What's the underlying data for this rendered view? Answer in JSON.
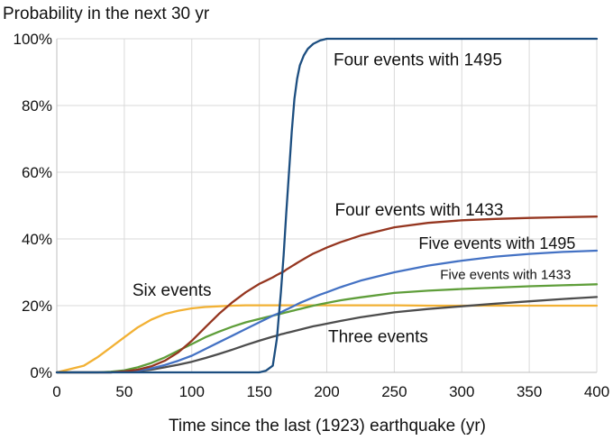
{
  "chart_data": {
    "type": "line",
    "title": "",
    "ylabel": "Probability in the next 30 yr",
    "xlabel": "Time since the last (1923) earthquake (yr)",
    "xlim": [
      0,
      400
    ],
    "ylim": [
      0,
      100
    ],
    "xticks": [
      0,
      50,
      100,
      150,
      200,
      250,
      300,
      350,
      400
    ],
    "xtick_labels": [
      "0",
      "50",
      "100",
      "150",
      "200",
      "250",
      "300",
      "350",
      "400"
    ],
    "yticks": [
      0,
      20,
      40,
      60,
      80,
      100
    ],
    "ytick_labels": [
      "0%",
      "20%",
      "40%",
      "60%",
      "80%",
      "100%"
    ],
    "grid": true,
    "x": [
      0,
      20,
      30,
      40,
      50,
      60,
      70,
      80,
      90,
      100,
      110,
      120,
      130,
      140,
      150,
      155,
      160,
      163,
      166,
      168,
      170,
      172,
      174,
      176,
      178,
      180,
      183,
      186,
      190,
      195,
      200,
      210,
      225,
      250,
      275,
      300,
      325,
      350,
      375,
      400
    ],
    "series": [
      {
        "name": "Four events with 1495",
        "color": "#1c4e80",
        "values": [
          0,
          0,
          0,
          0,
          0,
          0,
          0,
          0,
          0,
          0,
          0,
          0,
          0,
          0,
          0,
          0.5,
          2,
          10,
          24,
          35,
          48,
          60,
          72,
          82,
          88,
          92,
          95,
          97,
          98.5,
          99.5,
          100,
          100,
          100,
          100,
          100,
          100,
          100,
          100,
          100,
          100
        ]
      },
      {
        "name": "Four events with 1433",
        "color": "#953620",
        "values": [
          0,
          0,
          0,
          0,
          0.3,
          0.8,
          1.8,
          3.5,
          6,
          9.5,
          13.5,
          17.5,
          21,
          24,
          26.5,
          27.5,
          28.5,
          29.2,
          29.8,
          30.2,
          30.8,
          31.3,
          31.8,
          32.3,
          32.8,
          33.3,
          34,
          34.7,
          35.6,
          36.5,
          37.4,
          39,
          41,
          43.5,
          44.8,
          45.6,
          46,
          46.3,
          46.5,
          46.7
        ]
      },
      {
        "name": "Five events with 1495",
        "color": "#4472c4",
        "values": [
          0,
          0,
          0,
          0,
          0.3,
          0.6,
          1.2,
          2.2,
          3.5,
          5,
          7,
          9,
          11,
          13,
          15,
          16,
          17,
          17.5,
          18,
          18.4,
          18.8,
          19.2,
          19.6,
          20,
          20.4,
          20.8,
          21.3,
          21.8,
          22.5,
          23.3,
          24,
          25.5,
          27.5,
          30,
          32,
          33.5,
          34.7,
          35.5,
          36.1,
          36.5
        ]
      },
      {
        "name": "Five events with 1433",
        "color": "#5f9e3a",
        "values": [
          0,
          0,
          0,
          0.2,
          0.6,
          1.5,
          2.8,
          4.5,
          6.5,
          8.5,
          10.5,
          12.2,
          13.7,
          15,
          16,
          16.5,
          17,
          17.3,
          17.6,
          17.8,
          18,
          18.2,
          18.4,
          18.6,
          18.8,
          19,
          19.3,
          19.6,
          20,
          20.4,
          20.8,
          21.6,
          22.5,
          23.8,
          24.5,
          25,
          25.4,
          25.8,
          26.1,
          26.4
        ]
      },
      {
        "name": "Six events",
        "color": "#f2b134",
        "values": [
          0,
          2,
          4.5,
          7.5,
          10.5,
          13.5,
          15.8,
          17.5,
          18.5,
          19.2,
          19.6,
          19.8,
          20,
          20.1,
          20.1,
          20.1,
          20.1,
          20.1,
          20.1,
          20.1,
          20.1,
          20.1,
          20.1,
          20.1,
          20.1,
          20.1,
          20.1,
          20.1,
          20.1,
          20.1,
          20.1,
          20.1,
          20.1,
          20.1,
          20,
          20,
          20,
          20,
          20,
          20
        ]
      },
      {
        "name": "Three events",
        "color": "#4d4d4d",
        "values": [
          0,
          0,
          0,
          0,
          0.2,
          0.4,
          0.8,
          1.5,
          2.3,
          3.2,
          4.3,
          5.5,
          6.8,
          8.2,
          9.5,
          10.1,
          10.7,
          11,
          11.4,
          11.6,
          11.8,
          12,
          12.2,
          12.4,
          12.6,
          12.8,
          13.1,
          13.4,
          13.8,
          14.2,
          14.6,
          15.4,
          16.5,
          18,
          19,
          19.8,
          20.6,
          21.3,
          22,
          22.6
        ]
      }
    ],
    "annotations": [
      {
        "text": "Four events with 1495",
        "x": 205,
        "y": 92,
        "size": 19
      },
      {
        "text": "Four events with 1433",
        "x": 206,
        "y": 47,
        "size": 19
      },
      {
        "text": "Five events with 1495",
        "x": 268,
        "y": 37,
        "size": 18
      },
      {
        "text": "Five events with 1433",
        "x": 284,
        "y": 28,
        "size": 15
      },
      {
        "text": "Six events",
        "x": 56,
        "y": 23,
        "size": 19
      },
      {
        "text": "Three events",
        "x": 201,
        "y": 9,
        "size": 19
      }
    ]
  }
}
